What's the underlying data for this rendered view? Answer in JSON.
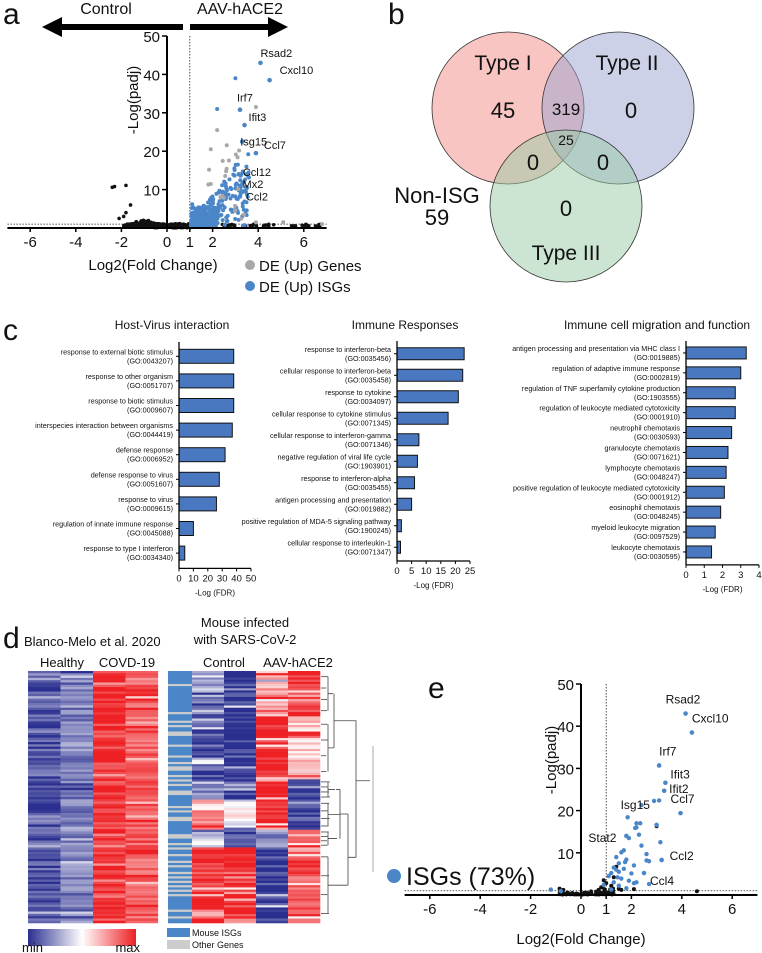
{
  "panels": {
    "a": "a",
    "b": "b",
    "c": "c",
    "d": "d",
    "e": "e"
  },
  "colors": {
    "isg": "#4a86c8",
    "de_gene": "#a8a8a8",
    "other": "#111111",
    "bar": "#4a78c0",
    "heat_min": "#2a2f8f",
    "heat_mid": "#ffffff",
    "heat_max": "#ee2024",
    "other_genes": "#cccccc",
    "type1": "#f28b86",
    "type2": "#9aa3cf",
    "type3": "#9acba6"
  },
  "chart_data": [
    {
      "id": "a",
      "type": "scatter",
      "title_left": "Control",
      "title_right": "AAV-hACE2",
      "xlabel": "Log2(Fold Change)",
      "ylabel": "-Log(padj)",
      "xlim": [
        -7,
        7
      ],
      "ylim": [
        0,
        50
      ],
      "xticks": [
        -6,
        -4,
        -2,
        0,
        1,
        2,
        4,
        6
      ],
      "yticks": [
        10,
        20,
        30,
        40,
        50
      ],
      "threshold_x": 1,
      "threshold_y": 1,
      "legend": [
        {
          "label": "DE (Up) Genes",
          "color_key": "de_gene"
        },
        {
          "label": "DE (Up) ISGs",
          "color_key": "isg"
        }
      ],
      "legend_position": "bottom-right",
      "labeled_points": [
        {
          "gene": "Rsad2",
          "x": 4.1,
          "y": 43
        },
        {
          "gene": "Cxcl10",
          "x": 4.5,
          "y": 38.5
        },
        {
          "gene": "Irf7",
          "x": 3.2,
          "y": 30.8
        },
        {
          "gene": "Ifit3",
          "x": 3.4,
          "y": 26.8
        },
        {
          "gene": "Isg15",
          "x": 3.3,
          "y": 22.5
        },
        {
          "gene": "Ccl7",
          "x": 3.9,
          "y": 19.5
        },
        {
          "gene": "Ccl12",
          "x": 3.15,
          "y": 14
        },
        {
          "gene": "Mx2",
          "x": 3.05,
          "y": 11.5
        },
        {
          "gene": "Ccl2",
          "x": 3.2,
          "y": 8.2
        }
      ]
    },
    {
      "id": "b",
      "type": "venn",
      "sets": [
        "Type I",
        "Type II",
        "Type III"
      ],
      "regions": {
        "I_only": "45",
        "I_II": "319",
        "II_only": "0",
        "I_II_III": "25",
        "I_III": "0",
        "II_III": "0",
        "III_only": "0"
      },
      "outside_label": "Non-ISG",
      "outside_value": "59"
    },
    {
      "id": "c1",
      "type": "bar",
      "orientation": "horizontal",
      "title": "Host-Virus interaction",
      "xlabel": "-Log (FDR)",
      "xlim": [
        0,
        50
      ],
      "xticks": [
        "0",
        "10",
        "20",
        "30",
        "40",
        "50"
      ],
      "categories": [
        [
          "response to external biotic stimulus",
          "(GO:0043207)"
        ],
        [
          "response to other organism",
          "(GO:0051707)"
        ],
        [
          "response to biotic stimulus",
          "(GO:0009607)"
        ],
        [
          "interspecies interaction between organisms",
          "(GO:0044419)"
        ],
        [
          "defense response",
          "(GO:0006952)"
        ],
        [
          "defense response to virus",
          "(GO:0051607)"
        ],
        [
          "response to virus",
          "(GO:0009615)"
        ],
        [
          "regulation of innate immune response",
          "(GO:0045088)"
        ],
        [
          "response to type I interferon",
          "(GO:0034340)"
        ]
      ],
      "values": [
        38,
        38,
        38,
        37,
        32,
        28,
        26,
        10,
        4
      ]
    },
    {
      "id": "c2",
      "type": "bar",
      "orientation": "horizontal",
      "title": "Immune Responses",
      "xlabel": "-Log (FDR)",
      "xlim": [
        0,
        25
      ],
      "xticks": [
        "0",
        "5",
        "10",
        "15",
        "20",
        "25"
      ],
      "categories": [
        [
          "response to interferon-beta",
          "(GO:0035456)"
        ],
        [
          "cellular response to interferon-beta",
          "(GO:0035458)"
        ],
        [
          "response to cytokine",
          "(GO:0034097)"
        ],
        [
          "cellular response to cytokine stimulus",
          "(GO:0071345)"
        ],
        [
          "cellular response to interferon-gamma",
          "(GO:0071346)"
        ],
        [
          "negative regulation of viral life cycle",
          "(GO:1903901)"
        ],
        [
          "response to interferon-alpha",
          "(GO:0035455)"
        ],
        [
          "antigen processing and presentation",
          "(GO:0019882)"
        ],
        [
          "positive regulation of MDA-5 signaling pathway",
          "(GO:1900245)"
        ],
        [
          "cellular response to interleukin-1",
          "(GO:0071347)"
        ]
      ],
      "values": [
        23,
        22.5,
        21,
        17.5,
        7.5,
        7,
        6,
        5,
        1.5,
        1.2
      ]
    },
    {
      "id": "c3",
      "type": "bar",
      "orientation": "horizontal",
      "title": "Immune cell migration and function",
      "xlabel": "-Log (FDR)",
      "xlim": [
        0,
        4
      ],
      "xticks": [
        "0",
        "1",
        "2",
        "3",
        "4"
      ],
      "categories": [
        [
          "antigen processing and presentation via MHC class I",
          "(GO:0019885)"
        ],
        [
          "regulation of adaptive immune response",
          "(GO:0002819)"
        ],
        [
          "regulation of TNF superfamily cytokine production",
          "(GO:1903555)"
        ],
        [
          "regulation of leukocyte mediated cytotoxicity",
          "(GO:0001910)"
        ],
        [
          "neutrophil chemotaxis",
          "(GO:0030593)"
        ],
        [
          "granulocyte chemotaxis",
          "(GO:0071621)"
        ],
        [
          "lymphocyte chemotaxis",
          "(GO:0048247)"
        ],
        [
          "positive regulation of leukocyte mediated cytotoxicity",
          "(GO:0001912)"
        ],
        [
          "eosinophil chemotaxis",
          "(GO:0048245)"
        ],
        [
          "myeloid leukocyte migration",
          "(GO:0097529)"
        ],
        [
          "leukocyte chemotaxis",
          "(GO:0030595)"
        ]
      ],
      "values": [
        3.3,
        3.0,
        2.7,
        2.7,
        2.5,
        2.3,
        2.2,
        2.1,
        1.9,
        1.6,
        1.4
      ]
    },
    {
      "id": "d",
      "type": "heatmap",
      "left_title": "Blanco-Melo et al. 2020",
      "left_columns": [
        "Healthy",
        "COVD-19"
      ],
      "left_column_means": [
        0.1,
        0.2,
        0.95,
        0.85
      ],
      "right_title": [
        "Mouse infected",
        "with SARS-CoV-2"
      ],
      "right_columns": [
        "Control",
        "AAV-hACE2"
      ],
      "right_clusters": [
        {
          "weight": 18,
          "isg_frac": 0.9,
          "means": [
            0.25,
            0.05,
            0.7,
            0.95
          ]
        },
        {
          "weight": 25,
          "isg_frac": 0.7,
          "means": [
            0.1,
            0.05,
            0.97,
            0.6
          ]
        },
        {
          "weight": 8,
          "isg_frac": 0.8,
          "means": [
            0.2,
            0.05,
            0.97,
            0.05
          ]
        },
        {
          "weight": 12,
          "isg_frac": 0.7,
          "means": [
            0.75,
            0.5,
            0.95,
            0.05
          ]
        },
        {
          "weight": 7,
          "isg_frac": 0.6,
          "means": [
            0.4,
            0.1,
            0.3,
            0.95
          ]
        },
        {
          "weight": 30,
          "isg_frac": 0.6,
          "means": [
            0.92,
            0.95,
            0.03,
            0.85
          ]
        }
      ],
      "colorbar": {
        "min_label": "min",
        "max_label": "max"
      },
      "legend": [
        {
          "label": "Mouse ISGs",
          "color_key": "isg"
        },
        {
          "label": "Other Genes",
          "color_key": "other_genes"
        }
      ]
    },
    {
      "id": "e",
      "type": "scatter",
      "xlabel": "Log2(Fold Change)",
      "ylabel": "-Log(padj)",
      "xlim": [
        -7,
        7
      ],
      "ylim": [
        0,
        50
      ],
      "xticks": [
        -6,
        -4,
        -2,
        0,
        1,
        2,
        4,
        6
      ],
      "yticks": [
        10,
        20,
        30,
        40,
        50
      ],
      "threshold_x": 1,
      "threshold_y": 1,
      "legend_label": "ISGs (73%)",
      "labeled_points": [
        {
          "gene": "Rsad2",
          "x": 4.15,
          "y": 43
        },
        {
          "gene": "Cxcl10",
          "x": 4.4,
          "y": 38.5
        },
        {
          "gene": "Irf7",
          "x": 3.1,
          "y": 30.7
        },
        {
          "gene": "Ifit3",
          "x": 3.35,
          "y": 26.6
        },
        {
          "gene": "Ifit2",
          "x": 3.3,
          "y": 24.7
        },
        {
          "gene": "Ccl7",
          "x": 3.95,
          "y": 19.4
        },
        {
          "gene": "Isg15",
          "x": 3.0,
          "y": 16.6
        },
        {
          "gene": "Stat2",
          "x": 1.8,
          "y": 14
        },
        {
          "gene": "Ccl2",
          "x": 3.2,
          "y": 8.3
        },
        {
          "gene": "Ccl4",
          "x": 2.5,
          "y": 5.2
        }
      ],
      "isg_points": [
        [
          2.9,
          22.3
        ],
        [
          3.1,
          22.4
        ],
        [
          2.4,
          21.3
        ],
        [
          1.85,
          18.4
        ],
        [
          2.2,
          17
        ],
        [
          2.35,
          17
        ],
        [
          2.15,
          15.9
        ],
        [
          2.2,
          16
        ],
        [
          2.3,
          14.3
        ],
        [
          1.9,
          13.5
        ],
        [
          3.15,
          12.5
        ],
        [
          2.4,
          11.7
        ],
        [
          1.7,
          10.6
        ],
        [
          1.6,
          10.1
        ],
        [
          2.6,
          9.7
        ],
        [
          2.6,
          8.2
        ],
        [
          2.7,
          8
        ],
        [
          1.4,
          9
        ],
        [
          1.5,
          7.5
        ],
        [
          1.75,
          7.8
        ],
        [
          1.8,
          8.4
        ],
        [
          2.1,
          7
        ],
        [
          1.3,
          6.5
        ],
        [
          1.5,
          5.5
        ],
        [
          1.2,
          5.2
        ],
        [
          1.4,
          6
        ],
        [
          1.7,
          6.2
        ],
        [
          2.0,
          5.1
        ],
        [
          2.2,
          3
        ],
        [
          2.1,
          2.8
        ],
        [
          2.7,
          2.6
        ],
        [
          1.6,
          3.9
        ],
        [
          1.3,
          3
        ],
        [
          1.1,
          4.5
        ],
        [
          1.5,
          2.2
        ],
        [
          1.8,
          1.6
        ],
        [
          1.2,
          1.3
        ],
        [
          0.9,
          2.4
        ],
        [
          -1.2,
          1.3
        ],
        [
          -0.8,
          0.9
        ],
        [
          1.45,
          4.2
        ],
        [
          1.9,
          3.4
        ]
      ],
      "other_points": [
        [
          3.0,
          16.3
        ],
        [
          1.4,
          6.7
        ],
        [
          4.6,
          0.9
        ],
        [
          2.1,
          1.4
        ],
        [
          1.5,
          1.5
        ],
        [
          1.3,
          4.2
        ],
        [
          1.0,
          2.8
        ],
        [
          0.9,
          3.5
        ],
        [
          0.8,
          1.8
        ],
        [
          1.2,
          2.2
        ],
        [
          1.6,
          1.2
        ],
        [
          -0.85,
          1.5
        ],
        [
          -0.7,
          1.2
        ],
        [
          0.7,
          1.2
        ],
        [
          0.6,
          0.8
        ]
      ]
    }
  ]
}
